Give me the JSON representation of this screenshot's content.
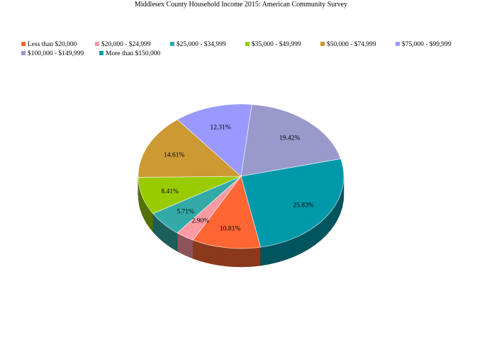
{
  "chart_data": {
    "type": "pie",
    "title": "Middlesex County Household Income 2015: American Community Survey",
    "legend_position": "top",
    "three_d": true,
    "slices": [
      {
        "label": "Less than $20,000",
        "value": 10.81,
        "display": "10.81%",
        "color": "#ff6633"
      },
      {
        "label": "$20,000 - $24,999",
        "value": 2.9,
        "display": "2.90%",
        "color": "#ff99a3"
      },
      {
        "label": "$25,000 - $34,999",
        "value": 5.71,
        "display": "5.71%",
        "color": "#33aaa8"
      },
      {
        "label": "$35,000 - $49,999",
        "value": 8.41,
        "display": "8.41%",
        "color": "#99cc00"
      },
      {
        "label": "$50,000 - $74,999",
        "value": 14.61,
        "display": "14.61%",
        "color": "#cc9933"
      },
      {
        "label": "$75,000 - $99,999",
        "value": 12.31,
        "display": "12.31%",
        "color": "#9999ff"
      },
      {
        "label": "$100,000 - $149,999",
        "value": 19.42,
        "display": "19.42%",
        "color": "#9999cc"
      },
      {
        "label": "More than $150,000",
        "value": 25.83,
        "display": "25.83%",
        "color": "#0099aa"
      }
    ]
  }
}
